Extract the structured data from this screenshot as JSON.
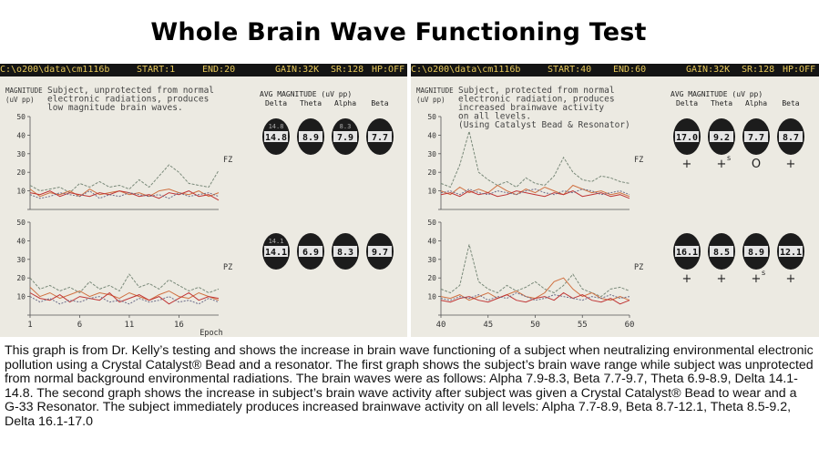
{
  "title": "Whole Brain Wave Functioning Test",
  "caption": "This graph is from Dr. Kelly’s testing and shows the increase in brain wave functioning of a subject when neutralizing environmental electronic pollution using a Crystal Catalyst® Bead and a resonator. The first graph shows the subject’s brain wave range while subject was unprotected from normal background environmental radiations. The brain waves were as follows: Alpha 7.9-8.3, Beta 7.7-9.7, Theta 6.9-8.9, Delta 14.1-14.8. The second graph shows the increase in subject’s brain wave activity after subject was given a Crystal Catalyst® Bead to wear and a G-33 Resonator. The subject immediately produces increased brainwave activity on all levels: Alpha 7.7-8.9, Beta 8.7-12.1, Theta 8.5-9.2, Delta 16.1-17.0",
  "colors": {
    "series_a": "#7a8a7a",
    "series_b": "#d07040",
    "series_c": "#c03535",
    "series_d": "#6d6d8a",
    "panel_bg": "#eceae2",
    "bar_bg": "#141414",
    "bar_text": "#e8c95a"
  },
  "chart_data": [
    {
      "type": "line",
      "panel": "left",
      "header": {
        "file": "C:\\o200\\data\\cm1116b",
        "start": "START:1",
        "end": "END:20",
        "gain": "GAIN:32K",
        "sr": "SR:128",
        "hp": "HP:OFF"
      },
      "ylabel": "MAGNITUDE (uV pp)",
      "note": [
        "Subject, unprotected from normal",
        "electronic radiations, produces",
        "low magnitude brain waves."
      ],
      "xlabel": "Epoch",
      "xlim": [
        1,
        20
      ],
      "x_ticks": [
        1,
        6,
        11,
        16
      ],
      "ylim": [
        0,
        50
      ],
      "y_ticks": [
        0,
        10,
        20,
        30,
        40,
        50
      ],
      "avg_heading": "AVG MAGNITUDE (uV pp)",
      "band_labels": [
        "Delta",
        "Theta",
        "Alpha",
        "Beta"
      ],
      "subplots": [
        {
          "label": "FZ",
          "avg_values": [
            "14.8",
            "8.9",
            "7.9",
            "7.7"
          ],
          "avg_secondary": [
            "14.8",
            "",
            "8.3",
            ""
          ],
          "marks": [
            "",
            "",
            "",
            ""
          ],
          "series": [
            {
              "values": [
                13,
                10,
                11,
                12,
                9,
                14,
                12,
                15,
                12,
                13,
                11,
                16,
                12,
                18,
                24,
                20,
                14,
                13,
                12,
                21
              ]
            },
            {
              "values": [
                11,
                7,
                9,
                8,
                10,
                7,
                11,
                8,
                9,
                10,
                8,
                9,
                7,
                10,
                11,
                9,
                8,
                10,
                7,
                9
              ]
            },
            {
              "values": [
                9,
                8,
                10,
                7,
                9,
                8,
                7,
                9,
                8,
                10,
                9,
                7,
                8,
                6,
                9,
                8,
                10,
                7,
                8,
                5
              ]
            },
            {
              "values": [
                8,
                6,
                7,
                9,
                8,
                7,
                10,
                6,
                8,
                7,
                9,
                8,
                7,
                8,
                6,
                9,
                7,
                8,
                9,
                7
              ]
            }
          ]
        },
        {
          "label": "PZ",
          "avg_values": [
            "14.1",
            "6.9",
            "8.3",
            "9.7"
          ],
          "avg_secondary": [
            "14.1",
            "",
            "",
            ""
          ],
          "marks": [
            "",
            "",
            "",
            ""
          ],
          "series": [
            {
              "values": [
                20,
                14,
                16,
                13,
                15,
                12,
                18,
                14,
                16,
                13,
                22,
                15,
                17,
                14,
                19,
                16,
                13,
                15,
                12,
                14
              ]
            },
            {
              "values": [
                15,
                10,
                12,
                9,
                11,
                13,
                10,
                12,
                11,
                9,
                12,
                10,
                8,
                11,
                13,
                10,
                9,
                12,
                10,
                8
              ]
            },
            {
              "values": [
                12,
                9,
                8,
                11,
                7,
                10,
                9,
                8,
                12,
                7,
                9,
                11,
                8,
                10,
                6,
                9,
                12,
                8,
                10,
                9
              ]
            },
            {
              "values": [
                10,
                7,
                9,
                6,
                8,
                7,
                9,
                10,
                7,
                8,
                6,
                9,
                7,
                8,
                10,
                7,
                8,
                6,
                9,
                7
              ]
            }
          ]
        }
      ]
    },
    {
      "type": "line",
      "panel": "right",
      "header": {
        "file": "C:\\o200\\data\\cm1116b",
        "start": "START:40",
        "end": "END:60",
        "gain": "GAIN:32K",
        "sr": "SR:128",
        "hp": "HP:OFF"
      },
      "ylabel": "MAGNITUDE (uV pp)",
      "note": [
        "Subject, protected from normal",
        "electronic radiation, produces",
        "increased brainwave activity",
        "on all levels.",
        "(Using Catalyst Bead & Resonator)"
      ],
      "xlabel": "",
      "xlim": [
        40,
        60
      ],
      "x_ticks": [
        40,
        45,
        50,
        55,
        60
      ],
      "ylim": [
        0,
        50
      ],
      "y_ticks": [
        0,
        10,
        20,
        30,
        40,
        50
      ],
      "avg_heading": "AVG MAGNITUDE (uV pp)",
      "band_labels": [
        "Delta",
        "Theta",
        "Alpha",
        "Beta"
      ],
      "subplots": [
        {
          "label": "FZ",
          "avg_values": [
            "17.0",
            "9.2",
            "7.7",
            "8.7"
          ],
          "avg_secondary": [
            "",
            "",
            "",
            ""
          ],
          "marks": [
            "+",
            "+s",
            "O",
            "+"
          ],
          "series": [
            {
              "values": [
                14,
                12,
                24,
                42,
                20,
                16,
                13,
                15,
                12,
                17,
                14,
                13,
                18,
                28,
                20,
                16,
                15,
                18,
                17,
                15,
                14
              ]
            },
            {
              "values": [
                10,
                8,
                12,
                9,
                11,
                9,
                13,
                10,
                8,
                11,
                9,
                12,
                10,
                8,
                13,
                11,
                9,
                10,
                8,
                9,
                7
              ]
            },
            {
              "values": [
                8,
                9,
                7,
                10,
                8,
                9,
                7,
                8,
                10,
                9,
                8,
                7,
                9,
                8,
                10,
                7,
                8,
                9,
                7,
                8,
                6
              ]
            },
            {
              "values": [
                9,
                10,
                8,
                11,
                9,
                8,
                10,
                9,
                8,
                10,
                11,
                9,
                8,
                10,
                9,
                11,
                10,
                8,
                9,
                10,
                8
              ]
            }
          ]
        },
        {
          "label": "PZ",
          "avg_values": [
            "16.1",
            "8.5",
            "8.9",
            "12.1"
          ],
          "avg_secondary": [
            "",
            "",
            "",
            ""
          ],
          "marks": [
            "+",
            "+",
            "+s",
            "+"
          ],
          "series": [
            {
              "values": [
                14,
                12,
                16,
                38,
                18,
                14,
                12,
                16,
                13,
                15,
                18,
                14,
                12,
                16,
                22,
                14,
                12,
                10,
                14,
                15,
                13
              ]
            },
            {
              "values": [
                10,
                9,
                11,
                8,
                10,
                12,
                9,
                11,
                13,
                10,
                9,
                12,
                18,
                20,
                14,
                10,
                12,
                9,
                8,
                10,
                8
              ]
            },
            {
              "values": [
                8,
                7,
                9,
                10,
                8,
                7,
                9,
                11,
                8,
                7,
                9,
                10,
                8,
                12,
                9,
                11,
                8,
                7,
                9,
                6,
                8
              ]
            },
            {
              "values": [
                9,
                8,
                10,
                9,
                11,
                8,
                10,
                9,
                12,
                10,
                8,
                9,
                11,
                10,
                9,
                8,
                10,
                9,
                11,
                9,
                10
              ]
            }
          ]
        }
      ]
    }
  ]
}
